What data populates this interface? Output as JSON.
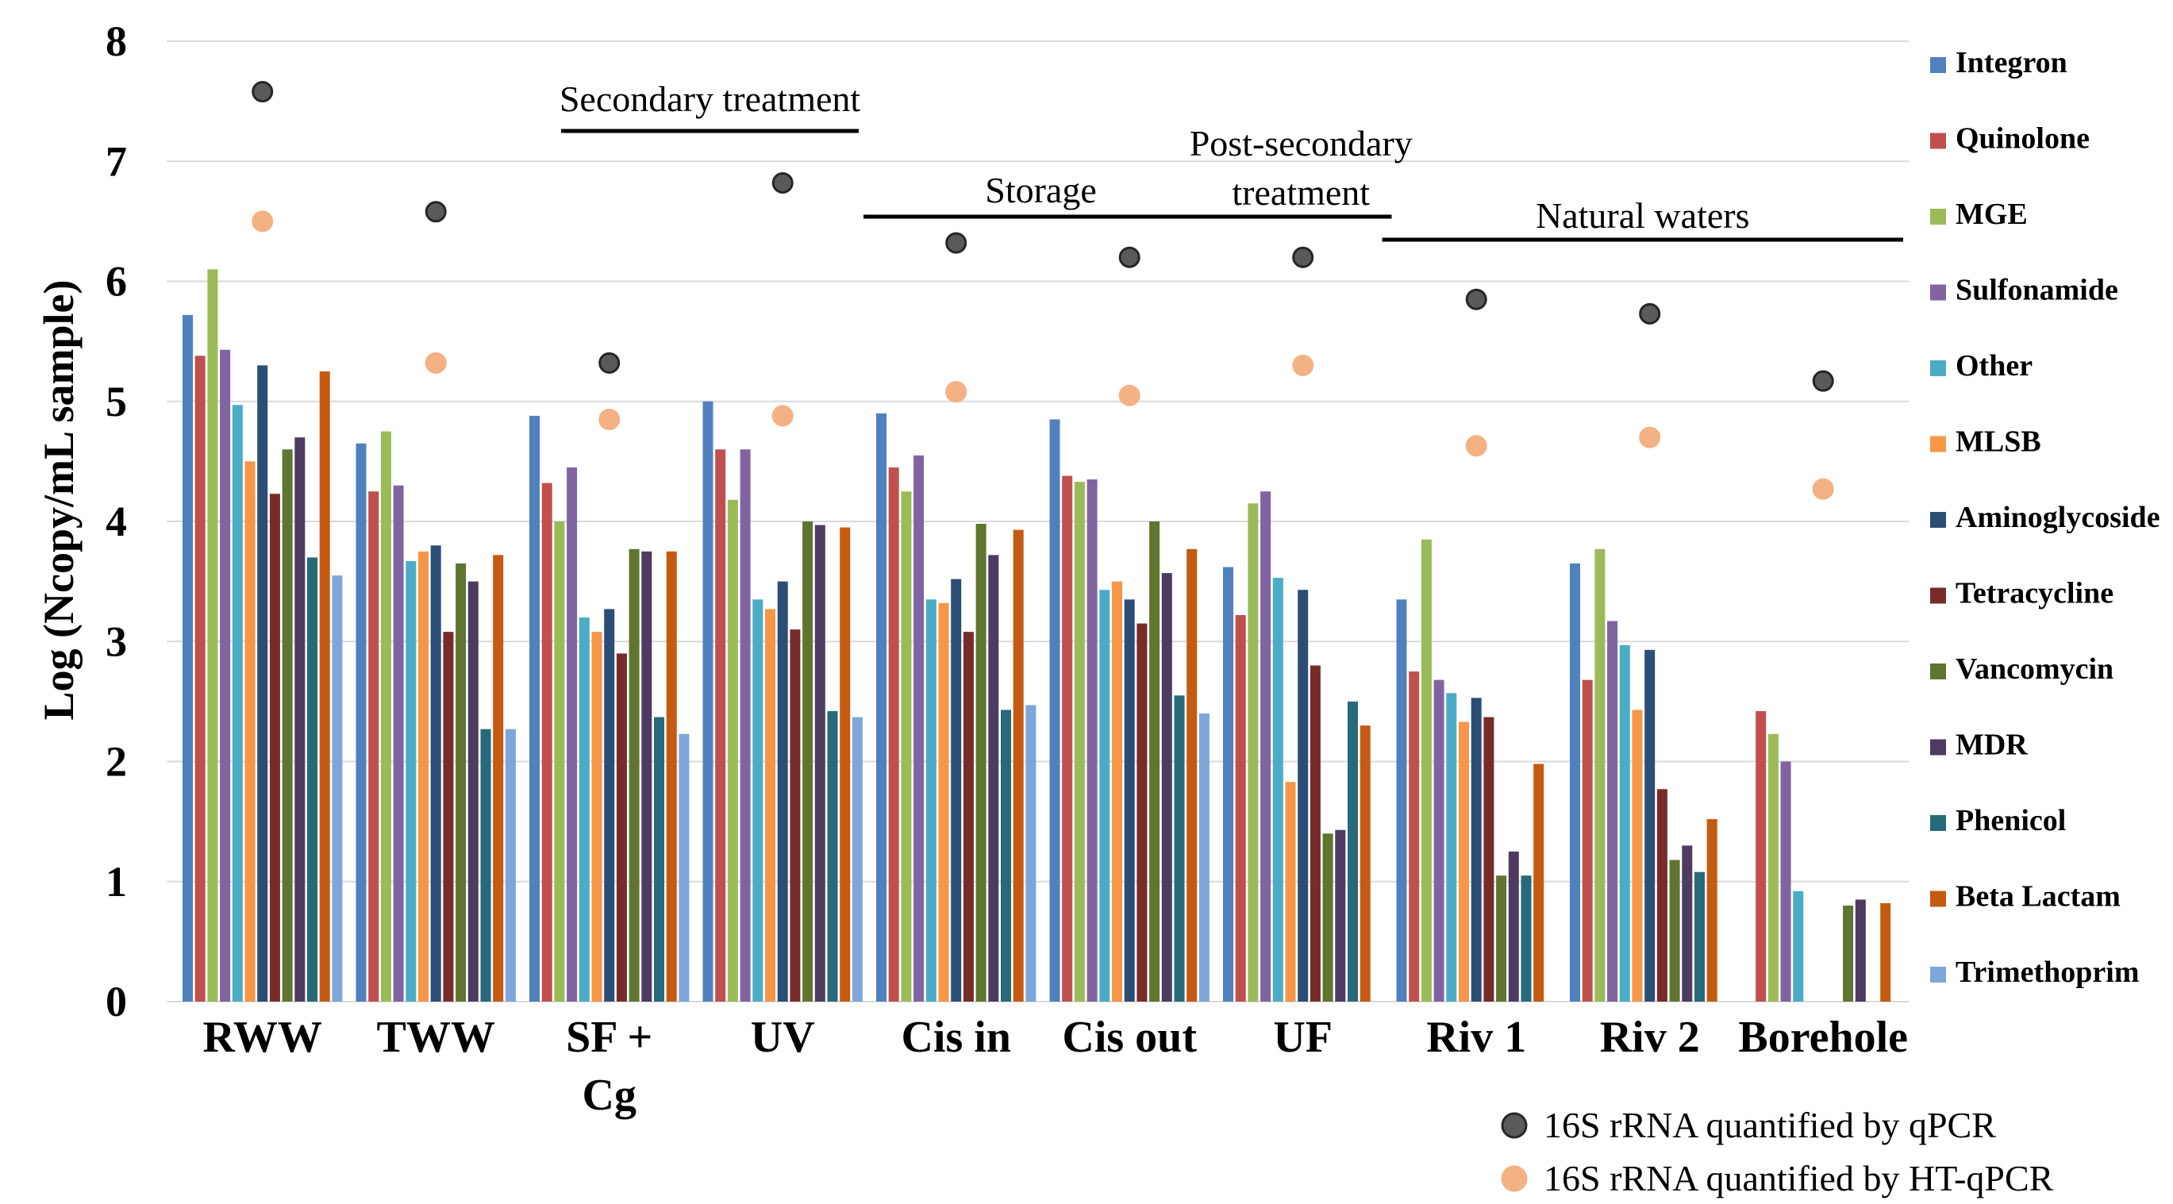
{
  "chart_data": {
    "type": "bar",
    "ylabel": "Log (Ncopy/mL sample)",
    "ylim": [
      0,
      8
    ],
    "yticks": [
      "0",
      "1",
      "2",
      "3",
      "4",
      "5",
      "6",
      "7",
      "8"
    ],
    "grid": true,
    "legend_position": "right",
    "categories": [
      {
        "label": "RWW"
      },
      {
        "label": "TWW"
      },
      {
        "label": "SF +",
        "label2": "Cg"
      },
      {
        "label": "UV"
      },
      {
        "label": "Cis in"
      },
      {
        "label": "Cis out"
      },
      {
        "label": "UF"
      },
      {
        "label": "Riv 1"
      },
      {
        "label": "Riv 2"
      },
      {
        "label": "Borehole"
      }
    ],
    "series": [
      {
        "name": "Integron",
        "color": "#4f81bd",
        "values": [
          5.72,
          4.65,
          4.88,
          5.0,
          4.9,
          4.85,
          3.62,
          3.35,
          3.65,
          0
        ]
      },
      {
        "name": "Quinolone",
        "color": "#c0504d",
        "values": [
          5.38,
          4.25,
          4.32,
          4.6,
          4.45,
          4.38,
          3.22,
          2.75,
          2.68,
          2.42
        ]
      },
      {
        "name": "MGE",
        "color": "#9bbb59",
        "values": [
          6.1,
          4.75,
          4.0,
          4.18,
          4.25,
          4.33,
          4.15,
          3.85,
          3.77,
          2.23
        ]
      },
      {
        "name": "Sulfonamide",
        "color": "#8064a2",
        "values": [
          5.43,
          4.3,
          4.45,
          4.6,
          4.55,
          4.35,
          4.25,
          2.68,
          3.17,
          2.0
        ]
      },
      {
        "name": "Other",
        "color": "#4bacc6",
        "values": [
          4.97,
          3.67,
          3.2,
          3.35,
          3.35,
          3.43,
          3.53,
          2.57,
          2.97,
          0.92
        ]
      },
      {
        "name": "MLSB",
        "color": "#f79646",
        "values": [
          4.5,
          3.75,
          3.08,
          3.27,
          3.32,
          3.5,
          1.83,
          2.33,
          2.43,
          0
        ]
      },
      {
        "name": "Aminoglycoside",
        "color": "#2c4d75",
        "values": [
          5.3,
          3.8,
          3.27,
          3.5,
          3.52,
          3.35,
          3.43,
          2.53,
          2.93,
          0
        ]
      },
      {
        "name": "Tetracycline",
        "color": "#772c2a",
        "values": [
          4.23,
          3.08,
          2.9,
          3.1,
          3.08,
          3.15,
          2.8,
          2.37,
          1.77,
          0
        ]
      },
      {
        "name": "Vancomycin",
        "color": "#5f7530",
        "values": [
          4.6,
          3.65,
          3.77,
          4.0,
          3.98,
          4.0,
          1.4,
          1.05,
          1.18,
          0.8
        ]
      },
      {
        "name": "MDR",
        "color": "#4d3b62",
        "values": [
          4.7,
          3.5,
          3.75,
          3.97,
          3.72,
          3.57,
          1.43,
          1.25,
          1.3,
          0.85
        ]
      },
      {
        "name": "Phenicol",
        "color": "#276a7c",
        "values": [
          3.7,
          2.27,
          2.37,
          2.42,
          2.43,
          2.55,
          2.5,
          1.05,
          1.08,
          0
        ]
      },
      {
        "name": "Beta Lactam",
        "color": "#c55a11",
        "values": [
          5.25,
          3.72,
          3.75,
          3.95,
          3.93,
          3.77,
          2.3,
          1.98,
          1.52,
          0.82
        ]
      },
      {
        "name": "Trimethoprim",
        "color": "#7ea6d8",
        "values": [
          3.55,
          2.27,
          2.23,
          2.37,
          2.47,
          2.4,
          0,
          0,
          0,
          0
        ]
      }
    ],
    "markers": [
      {
        "name": "16S rRNA quantified by qPCR",
        "color": "#5a5a5a",
        "stroke": "#262626",
        "values": [
          7.58,
          6.58,
          5.32,
          6.82,
          6.32,
          6.2,
          6.2,
          5.85,
          5.73,
          5.17
        ]
      },
      {
        "name": "16S rRNA quantified by HT-qPCR",
        "color": "#f4b183",
        "stroke": "#f4b183",
        "values": [
          6.5,
          5.32,
          4.85,
          4.88,
          5.08,
          5.05,
          5.3,
          4.63,
          4.7,
          4.27
        ]
      }
    ],
    "annotations": [
      {
        "text": "Secondary treatment",
        "from": 2,
        "to": 3
      },
      {
        "text": "Storage",
        "from": 4,
        "to": 5
      },
      {
        "text": "Post-secondary",
        "text2": "treatment",
        "from": 6,
        "to": 6
      },
      {
        "text": "Natural waters",
        "from": 7,
        "to": 9
      }
    ]
  }
}
